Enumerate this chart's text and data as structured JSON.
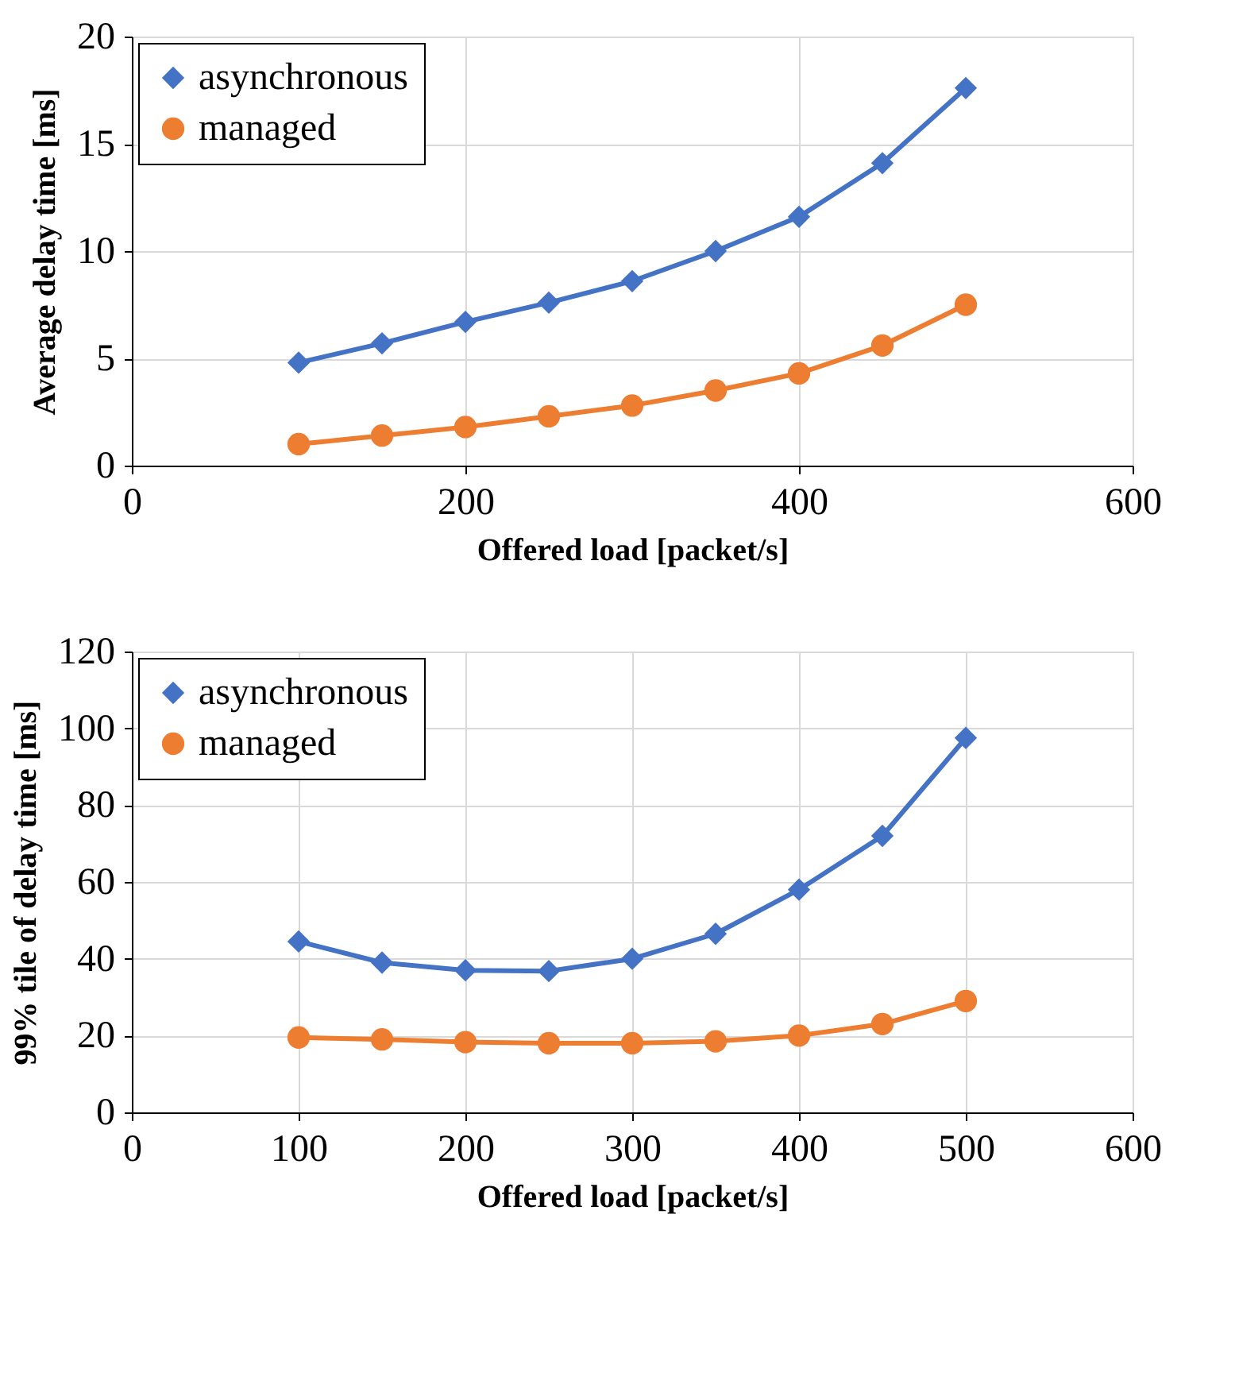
{
  "chart_data": [
    {
      "type": "line",
      "xlabel": "Offered load [packet/s]",
      "ylabel": "Average delay time [ms]",
      "x": [
        100,
        150,
        200,
        250,
        300,
        350,
        400,
        450,
        500
      ],
      "xlim": [
        0,
        600
      ],
      "xticks": [
        0,
        200,
        400,
        600
      ],
      "ylim": [
        0,
        20
      ],
      "yticks": [
        0,
        5,
        10,
        15,
        20
      ],
      "grid": true,
      "legend": "top left",
      "series": [
        {
          "name": "asynchronous",
          "color": "#4472c4",
          "marker": "diamond",
          "values": [
            4.8,
            5.7,
            6.7,
            7.6,
            8.6,
            10.0,
            11.6,
            14.1,
            17.6
          ]
        },
        {
          "name": "managed",
          "color": "#ed7d31",
          "marker": "circle",
          "values": [
            1.0,
            1.4,
            1.8,
            2.3,
            2.8,
            3.5,
            4.3,
            5.6,
            7.5
          ]
        }
      ]
    },
    {
      "type": "line",
      "xlabel": "Offered load [packet/s]",
      "ylabel": "99% tile of delay time [ms]",
      "x": [
        100,
        150,
        200,
        250,
        300,
        350,
        400,
        450,
        500
      ],
      "xlim": [
        0,
        600
      ],
      "xticks": [
        0,
        100,
        200,
        300,
        400,
        500,
        600
      ],
      "ylim": [
        0,
        120
      ],
      "yticks": [
        0,
        20,
        40,
        60,
        80,
        100,
        120
      ],
      "grid": true,
      "legend": "top left",
      "series": [
        {
          "name": "asynchronous",
          "color": "#4472c4",
          "marker": "diamond",
          "values": [
            44.5,
            39,
            37,
            36.8,
            40,
            46.5,
            58,
            72,
            97.5
          ]
        },
        {
          "name": "managed",
          "color": "#ed7d31",
          "marker": "circle",
          "values": [
            19.5,
            19,
            18.3,
            18,
            18,
            18.5,
            20,
            23,
            29
          ]
        }
      ]
    }
  ]
}
